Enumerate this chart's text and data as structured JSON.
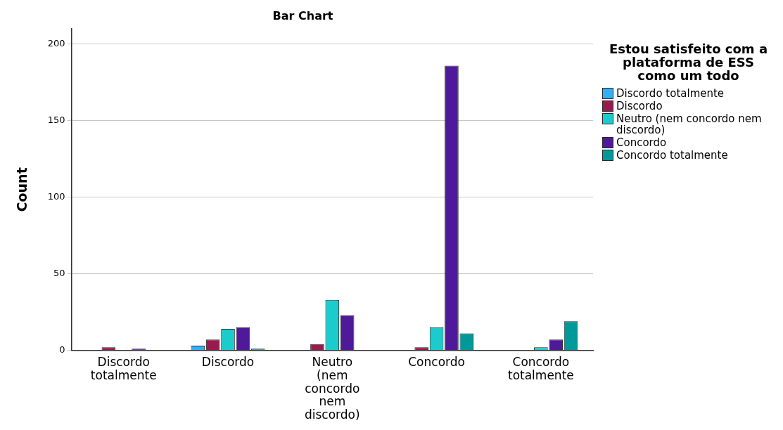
{
  "chart_data": {
    "type": "bar",
    "title": "Bar Chart",
    "ylabel": "Count",
    "legend_title": "Estou satisfeito com a plataforma de ESS como um todo",
    "legend": "right",
    "grid": "y",
    "categories": [
      "Discordo totalmente",
      "Discordo",
      "Neutro (nem concordo nem discordo)",
      "Concordo",
      "Concordo totalmente"
    ],
    "ylim": [
      0,
      210
    ],
    "yticks": [
      0,
      50,
      100,
      150,
      200
    ],
    "series": [
      {
        "name": "Discordo totalmente",
        "color": "#33aef5",
        "values": [
          null,
          3,
          null,
          null,
          null
        ]
      },
      {
        "name": "Discordo",
        "color": "#991a4d",
        "values": [
          2,
          7,
          4,
          2,
          null
        ]
      },
      {
        "name": "Neutro (nem concordo nem discordo)",
        "color": "#1ccccc",
        "values": [
          null,
          14,
          33,
          15,
          2
        ]
      },
      {
        "name": "Concordo",
        "color": "#4e1a9a",
        "values": [
          1,
          15,
          23,
          186,
          7
        ]
      },
      {
        "name": "Concordo totalmente",
        "color": "#009999",
        "values": [
          null,
          1,
          null,
          11,
          19
        ]
      }
    ]
  }
}
